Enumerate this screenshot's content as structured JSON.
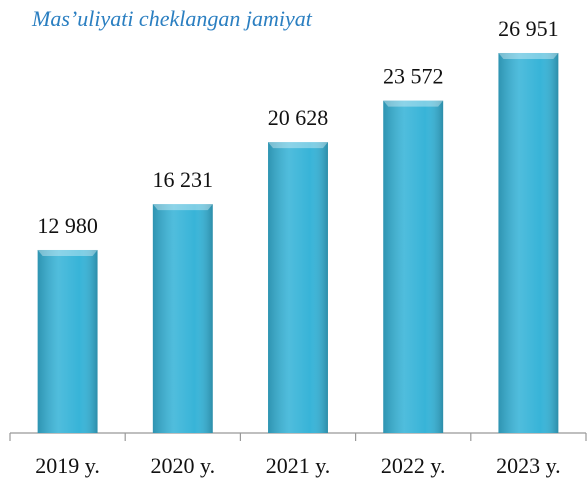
{
  "chart_data": {
    "type": "bar",
    "title": "Mas’uliyati cheklangan jamiyat",
    "categories": [
      "2019 y.",
      "2020 y.",
      "2021 y.",
      "2022 y.",
      "2023 y."
    ],
    "values": [
      12980,
      16231,
      20628,
      23572,
      26951
    ],
    "value_labels": [
      "12 980",
      "16 231",
      "20 628",
      "23 572",
      "26 951"
    ],
    "color": "#38b4d8",
    "ylim": [
      0,
      30000
    ]
  }
}
